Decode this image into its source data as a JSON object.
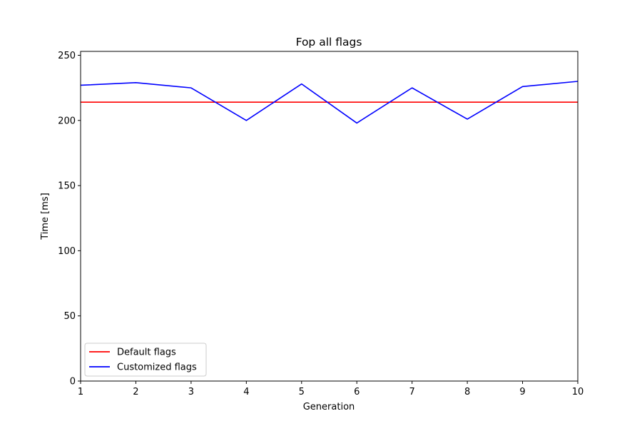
{
  "chart_data": {
    "type": "line",
    "title": "Fop all flags",
    "xlabel": "Generation",
    "ylabel": "Time [ms]",
    "xlim": [
      1,
      10
    ],
    "ylim": [
      0,
      253
    ],
    "x": [
      1,
      2,
      3,
      4,
      5,
      6,
      7,
      8,
      9,
      10
    ],
    "xticks": [
      1,
      2,
      3,
      4,
      5,
      6,
      7,
      8,
      9,
      10
    ],
    "yticks": [
      0,
      50,
      100,
      150,
      200,
      250
    ],
    "grid": false,
    "legend_position": "lower-left",
    "series": [
      {
        "name": "Default flags",
        "color": "#ff0000",
        "values": [
          214,
          214,
          214,
          214,
          214,
          214,
          214,
          214,
          214,
          214
        ]
      },
      {
        "name": "Customized flags",
        "color": "#0000ff",
        "values": [
          227,
          229,
          225,
          200,
          228,
          198,
          225,
          201,
          226,
          230
        ]
      }
    ]
  }
}
